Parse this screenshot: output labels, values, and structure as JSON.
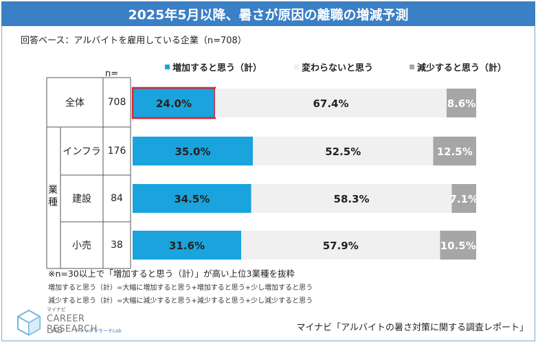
{
  "title": "2025年5月以降、暑さが原因の離職の増減予測",
  "subtitle": "回答ベース：アルバイトを雇用している企業（n=708）",
  "n_header": "n=",
  "group_label": "業種",
  "notes": [
    "※n=30以上で「増加すると思う（計）」が高い上位3業種を抜粋",
    "増加すると思う（計）=大幅に増加すると思う+増加すると思う+少し増加すると思う",
    "減少すると思う（計）=大幅に減少すると思う+減少すると思う+少し減少すると思う"
  ],
  "source": "マイナビ「アルバイトの暑さ対策に関する調査レポート」",
  "logo": {
    "kana": "マイナビ",
    "main": "CAREER RESEARCH",
    "lab": "LAB",
    "lab_kana": "キャリアリサーチLab"
  },
  "colors": {
    "increase": "#1aa3dd",
    "same": "#f0f0f0",
    "decrease": "#a6a6a6",
    "title_bg": "#3b7fc4",
    "highlight": "#e0202a"
  },
  "chart_data": {
    "type": "bar",
    "orientation": "horizontal",
    "stacked": true,
    "percent": true,
    "categories": [
      "全体",
      "インフラ",
      "建設",
      "小売"
    ],
    "n": [
      708,
      176,
      84,
      38
    ],
    "series": [
      {
        "name": "増加すると思う（計）",
        "values": [
          24.0,
          35.0,
          34.5,
          31.6
        ],
        "labels": [
          "24.0%",
          "35.0%",
          "34.5%",
          "31.6%"
        ]
      },
      {
        "name": "変わらないと思う",
        "values": [
          67.4,
          52.5,
          58.3,
          57.9
        ],
        "labels": [
          "67.4%",
          "52.5%",
          "58.3%",
          "57.9%"
        ]
      },
      {
        "name": "減少すると思う（計）",
        "values": [
          8.6,
          12.5,
          7.1,
          10.5
        ],
        "labels": [
          "8.6%",
          "12.5%",
          "7.1%",
          "10.5%"
        ]
      }
    ],
    "highlight": {
      "category": "全体",
      "series": "増加すると思う（計）"
    },
    "xlim": [
      0,
      100
    ]
  }
}
